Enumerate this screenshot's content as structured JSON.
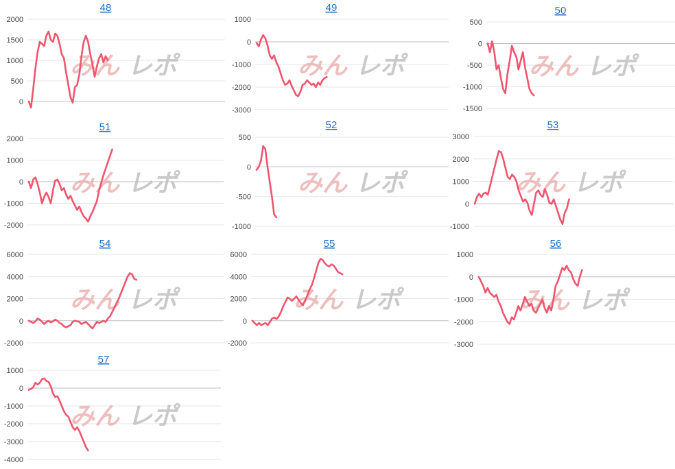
{
  "watermark": {
    "left": "みん",
    "right": "レポ"
  },
  "chart_data": [
    {
      "type": "line",
      "title": "48",
      "ylim": [
        -200,
        2000
      ],
      "yticks": [
        0,
        500,
        1000,
        1500,
        2000
      ],
      "values": [
        0,
        -150,
        300,
        800,
        1200,
        1450,
        1400,
        1350,
        1600,
        1700,
        1500,
        1450,
        1650,
        1600,
        1400,
        1150,
        1050,
        700,
        400,
        100,
        -30,
        350,
        400,
        650,
        1100,
        1450,
        1600,
        1450,
        1150,
        900,
        600,
        850,
        1050,
        1150,
        950,
        1100,
        1000
      ]
    },
    {
      "type": "line",
      "title": "49",
      "ylim": [
        -3000,
        1000
      ],
      "yticks": [
        1000,
        0,
        -1000,
        -2000,
        -3000
      ],
      "values": [
        -50,
        -200,
        100,
        300,
        150,
        -150,
        -600,
        -750,
        -600,
        -900,
        -1100,
        -1400,
        -1700,
        -1900,
        -1850,
        -1700,
        -1950,
        -2150,
        -2350,
        -2400,
        -2200,
        -1900,
        -1850,
        -1700,
        -1800,
        -1900,
        -1850,
        -2000,
        -1800,
        -1900,
        -1700,
        -1600,
        -1550
      ]
    },
    {
      "type": "line",
      "title": "50",
      "ylim": [
        -1500,
        500
      ],
      "yticks": [
        500,
        0,
        -500,
        -1000,
        -1500
      ],
      "values": [
        0,
        -200,
        50,
        -200,
        -600,
        -500,
        -800,
        -1050,
        -1150,
        -700,
        -400,
        -50,
        -200,
        -300,
        -600,
        -400,
        -200,
        -550,
        -800,
        -1050,
        -1150,
        -1200
      ]
    },
    {
      "type": "line",
      "title": "51",
      "ylim": [
        -2000,
        2000
      ],
      "yticks": [
        2000,
        1000,
        0,
        -1000,
        -2000
      ],
      "values": [
        0,
        -300,
        100,
        200,
        -100,
        -500,
        -1000,
        -700,
        -500,
        -700,
        -1000,
        -400,
        50,
        100,
        -100,
        -400,
        -300,
        -600,
        -800,
        -650,
        -900,
        -1100,
        -1300,
        -1150,
        -1400,
        -1600,
        -1700,
        -1850,
        -1600,
        -1400,
        -1150,
        -900,
        -400,
        -50,
        300,
        600,
        900,
        1200,
        1500
      ]
    },
    {
      "type": "line",
      "title": "52",
      "ylim": [
        -1000,
        500
      ],
      "yticks": [
        500,
        0,
        -500,
        -1000
      ],
      "values": [
        -50,
        0,
        100,
        350,
        300,
        0,
        -250,
        -500,
        -800,
        -850
      ]
    },
    {
      "type": "line",
      "title": "53",
      "ylim": [
        -1000,
        3000
      ],
      "yticks": [
        3000,
        2000,
        1000,
        0,
        -1000
      ],
      "values": [
        0,
        300,
        450,
        300,
        450,
        500,
        400,
        800,
        1200,
        1600,
        2000,
        2350,
        2300,
        2000,
        1600,
        1200,
        1100,
        1300,
        1200,
        1000,
        600,
        350,
        100,
        200,
        50,
        -300,
        -500,
        0,
        500,
        600,
        400,
        300,
        650,
        400,
        50,
        0,
        200,
        -100,
        -400,
        -700,
        -900,
        -400,
        -200,
        200
      ]
    },
    {
      "type": "line",
      "title": "54",
      "ylim": [
        -2000,
        6000
      ],
      "yticks": [
        6000,
        4000,
        2000,
        0,
        -2000
      ],
      "values": [
        0,
        -100,
        -200,
        -50,
        200,
        100,
        -100,
        -300,
        -100,
        0,
        -150,
        -50,
        100,
        0,
        -200,
        -300,
        -500,
        -600,
        -500,
        -400,
        -100,
        0,
        -50,
        -100,
        -300,
        -200,
        -100,
        -300,
        -500,
        -700,
        -400,
        -100,
        -200,
        -100,
        0,
        -100,
        200,
        400,
        800,
        1200,
        1600,
        2000,
        2500,
        3000,
        3500,
        4000,
        4300,
        4200,
        3800,
        3700
      ]
    },
    {
      "type": "line",
      "title": "55",
      "ylim": [
        -2000,
        6000
      ],
      "yticks": [
        6000,
        4000,
        2000,
        0,
        -2000
      ],
      "values": [
        0,
        -200,
        -400,
        -200,
        -400,
        -300,
        -200,
        -400,
        -100,
        200,
        300,
        150,
        400,
        800,
        1300,
        1700,
        2100,
        2000,
        1800,
        2000,
        2200,
        1900,
        1600,
        1400,
        1800,
        2300,
        2800,
        3200,
        3800,
        4500,
        5200,
        5600,
        5500,
        5200,
        5000,
        4900,
        5100,
        5000,
        4700,
        4400,
        4300,
        4200
      ]
    },
    {
      "type": "line",
      "title": "56",
      "ylim": [
        -3000,
        1000
      ],
      "yticks": [
        1000,
        0,
        -1000,
        -2000,
        -3000
      ],
      "values": [
        0,
        -200,
        -400,
        -700,
        -500,
        -700,
        -800,
        -900,
        -800,
        -1100,
        -1300,
        -1600,
        -1800,
        -2000,
        -2100,
        -1800,
        -1900,
        -1600,
        -1300,
        -1500,
        -1200,
        -900,
        -1100,
        -1300,
        -1200,
        -1500,
        -1600,
        -1400,
        -1200,
        -1000,
        -1400,
        -1600,
        -1300,
        -1500,
        -1000,
        -400,
        -200,
        100,
        400,
        300,
        500,
        300,
        200,
        -100,
        -300,
        -400,
        0,
        300
      ]
    },
    {
      "type": "line",
      "title": "57",
      "ylim": [
        -4000,
        1000
      ],
      "yticks": [
        1000,
        0,
        -1000,
        -2000,
        -3000,
        -4000
      ],
      "values": [
        -100,
        -50,
        50,
        300,
        200,
        300,
        500,
        550,
        400,
        350,
        100,
        -300,
        -500,
        -450,
        -700,
        -1000,
        -1300,
        -1500,
        -1600,
        -1900,
        -2200,
        -2350,
        -2200,
        -2400,
        -2700,
        -3000,
        -3300,
        -3500
      ]
    }
  ]
}
